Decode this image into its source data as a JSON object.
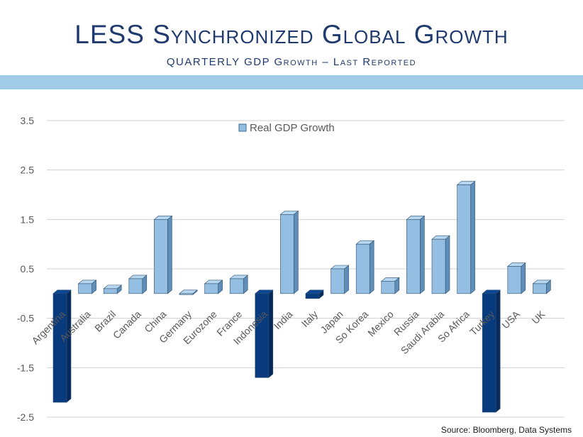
{
  "slide": {
    "title": "LESS Synchronized Global Growth",
    "subtitle": "QUARTERLY GDP Growth – Last Reported",
    "source": "Source:  Bloomberg, Data Systems"
  },
  "chart_data": {
    "type": "bar",
    "categories": [
      "Argentina",
      "Australia",
      "Brazil",
      "Canada",
      "China",
      "Germany",
      "Eurozone",
      "France",
      "Indonesia",
      "India",
      "Italy",
      "Japan",
      "So Korea",
      "Mexico",
      "Russia",
      "Saudi Arabia",
      "So Africa",
      "Turkey",
      "USA",
      "UK"
    ],
    "series": [
      {
        "name": "Real GDP Growth",
        "values": [
          -2.2,
          0.2,
          0.1,
          0.3,
          1.5,
          0.0,
          0.2,
          0.3,
          -1.7,
          1.6,
          -0.1,
          0.5,
          1.0,
          0.25,
          1.5,
          1.1,
          2.2,
          -2.4,
          0.55,
          0.2
        ]
      }
    ],
    "y_ticks": [
      "3.5",
      "2.5",
      "1.5",
      "0.5",
      "-0.5",
      "-1.5",
      "-2.5"
    ],
    "ylim": [
      -2.5,
      3.5
    ],
    "grid": true,
    "legend_position": "top",
    "colors": {
      "positive": "#95bfe2",
      "negative": "#083a7e",
      "grid": "#d0d0d0"
    }
  }
}
